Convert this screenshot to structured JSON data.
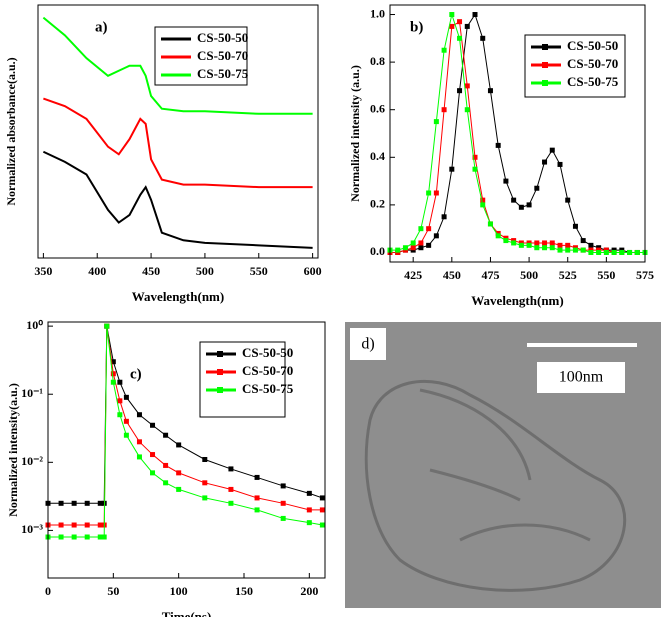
{
  "chart_data": [
    {
      "type": "line",
      "panel_label": "a)",
      "xlabel": "Wavelength(nm)",
      "ylabel": "Normalized absorbance(a.u.)",
      "x": [
        350,
        370,
        390,
        410,
        420,
        430,
        440,
        445,
        450,
        460,
        480,
        500,
        550,
        600
      ],
      "xlim": [
        345,
        605
      ],
      "xticks": [
        350,
        400,
        450,
        500,
        550,
        600
      ],
      "ylim": [
        0,
        10
      ],
      "series": [
        {
          "name": "CS-50-50",
          "color": "#000000",
          "values": [
            4.2,
            3.8,
            3.3,
            1.9,
            1.4,
            1.7,
            2.5,
            2.8,
            2.3,
            1.0,
            0.7,
            0.6,
            0.5,
            0.4
          ]
        },
        {
          "name": "CS-50-70",
          "color": "#ff0000",
          "values": [
            6.3,
            6.0,
            5.5,
            4.4,
            4.1,
            4.7,
            5.5,
            5.3,
            3.9,
            3.1,
            2.9,
            2.9,
            2.8,
            2.8
          ]
        },
        {
          "name": "CS-50-75",
          "color": "#00ff00",
          "values": [
            9.5,
            8.8,
            7.9,
            7.2,
            7.4,
            7.6,
            7.6,
            7.2,
            6.4,
            5.9,
            5.8,
            5.8,
            5.7,
            5.7
          ]
        }
      ]
    },
    {
      "type": "line",
      "panel_label": "b)",
      "xlabel": "Wavelength(nm)",
      "ylabel": "Normalized intensity (a.u.)",
      "markers": true,
      "x": [
        410,
        415,
        420,
        425,
        430,
        435,
        440,
        445,
        450,
        455,
        460,
        465,
        470,
        475,
        480,
        485,
        490,
        495,
        500,
        505,
        510,
        515,
        520,
        525,
        530,
        535,
        540,
        545,
        550,
        555,
        560,
        565,
        570,
        575
      ],
      "xlim": [
        410,
        575
      ],
      "xticks": [
        425,
        450,
        475,
        500,
        525,
        550,
        575
      ],
      "ylim": [
        -0.04,
        1.04
      ],
      "yticks": [
        {
          "value": 0,
          "label": "0.0"
        },
        {
          "value": 0.2,
          "label": "0.2"
        },
        {
          "value": 0.4,
          "label": "0.4"
        },
        {
          "value": 0.6,
          "label": "0.6"
        },
        {
          "value": 0.8,
          "label": "0.8"
        },
        {
          "value": 1,
          "label": "1.0"
        }
      ],
      "series": [
        {
          "name": "CS-50-50",
          "color": "#000000",
          "values": [
            0,
            0,
            0.01,
            0.01,
            0.02,
            0.03,
            0.07,
            0.15,
            0.35,
            0.68,
            0.95,
            1.0,
            0.9,
            0.68,
            0.45,
            0.3,
            0.22,
            0.19,
            0.2,
            0.27,
            0.38,
            0.43,
            0.37,
            0.22,
            0.11,
            0.05,
            0.03,
            0.02,
            0.01,
            0.01,
            0.01,
            0,
            0,
            0
          ]
        },
        {
          "name": "CS-50-70",
          "color": "#ff0000",
          "values": [
            0,
            0,
            0.01,
            0.02,
            0.04,
            0.1,
            0.25,
            0.6,
            0.95,
            0.97,
            0.7,
            0.4,
            0.22,
            0.12,
            0.08,
            0.06,
            0.05,
            0.04,
            0.04,
            0.04,
            0.04,
            0.04,
            0.03,
            0.03,
            0.02,
            0.01,
            0.01,
            0.01,
            0.01,
            0,
            0,
            0,
            0,
            0
          ]
        },
        {
          "name": "CS-50-75",
          "color": "#00ff00",
          "values": [
            0.01,
            0.01,
            0.02,
            0.04,
            0.1,
            0.25,
            0.55,
            0.85,
            1.0,
            0.9,
            0.6,
            0.35,
            0.2,
            0.12,
            0.07,
            0.05,
            0.04,
            0.03,
            0.03,
            0.02,
            0.02,
            0.02,
            0.01,
            0.01,
            0.01,
            0.01,
            0,
            0,
            0,
            0,
            0,
            0,
            0,
            0
          ]
        }
      ]
    },
    {
      "type": "line",
      "panel_label": "c)",
      "xlabel": "Time(ns)",
      "ylabel": "Normalized intensity(a.u.)",
      "markers": true,
      "log_y": true,
      "x": [
        0,
        10,
        20,
        30,
        40,
        43,
        45,
        50,
        55,
        60,
        70,
        80,
        90,
        100,
        120,
        140,
        160,
        180,
        200,
        210
      ],
      "xlim": [
        0,
        212
      ],
      "xticks": [
        0,
        50,
        100,
        150,
        200
      ],
      "ylim": [
        0.0002,
        1.15
      ],
      "yticks": [
        {
          "value": 0.001,
          "label": "10⁻³"
        },
        {
          "value": 0.01,
          "label": "10⁻²"
        },
        {
          "value": 0.1,
          "label": "10⁻¹"
        },
        {
          "value": 1,
          "label": "10⁰"
        }
      ],
      "series": [
        {
          "name": "CS-50-50",
          "color": "#000000",
          "values": [
            0.0025,
            0.0025,
            0.0025,
            0.0025,
            0.0025,
            0.0025,
            1,
            0.3,
            0.15,
            0.09,
            0.05,
            0.035,
            0.025,
            0.018,
            0.011,
            0.008,
            0.006,
            0.0045,
            0.0035,
            0.003
          ]
        },
        {
          "name": "CS-50-70",
          "color": "#ff0000",
          "values": [
            0.0012,
            0.0012,
            0.0012,
            0.0012,
            0.0012,
            0.0012,
            1,
            0.2,
            0.08,
            0.04,
            0.02,
            0.013,
            0.009,
            0.007,
            0.005,
            0.004,
            0.003,
            0.0025,
            0.002,
            0.002
          ]
        },
        {
          "name": "CS-50-75",
          "color": "#00ff00",
          "values": [
            0.0008,
            0.0008,
            0.0008,
            0.0008,
            0.0008,
            0.0008,
            1,
            0.15,
            0.05,
            0.025,
            0.012,
            0.007,
            0.005,
            0.004,
            0.003,
            0.0025,
            0.002,
            0.0015,
            0.0013,
            0.0012
          ]
        }
      ]
    }
  ],
  "image": {
    "panel_label": "d)",
    "scale_bar": "100nm"
  }
}
